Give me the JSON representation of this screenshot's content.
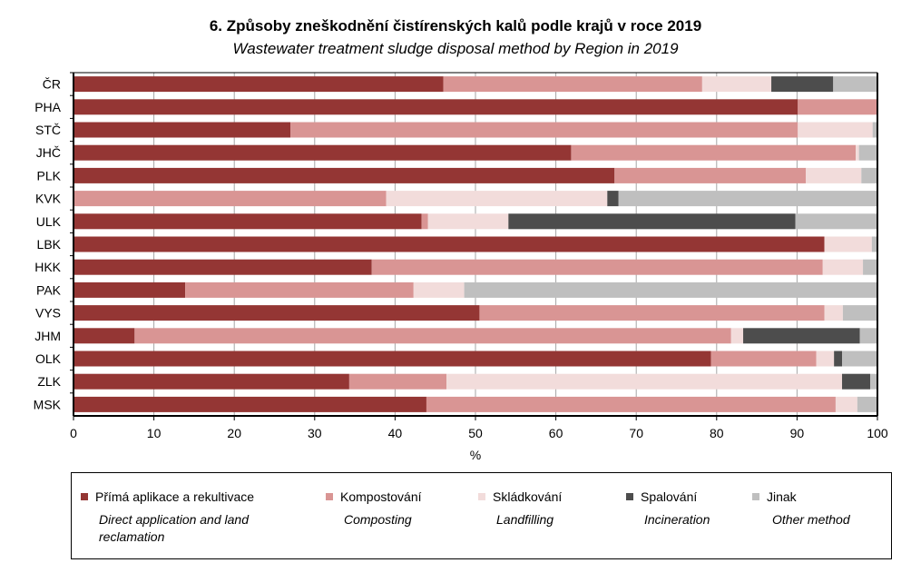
{
  "chart_data": {
    "type": "bar",
    "orientation": "horizontal",
    "stacked": true,
    "title": "6. Způsoby zneškodnění čistírenských kalů podle krajů v roce 2019",
    "subtitle": "Wastewater treatment sludge disposal method by Region in 2019",
    "xlabel": "%",
    "xlim": [
      0,
      100
    ],
    "xticks": [
      "0",
      "10",
      "20",
      "30",
      "40",
      "50",
      "60",
      "70",
      "80",
      "90",
      "100"
    ],
    "grid": true,
    "legend_position": "bottom",
    "categories": [
      "ČR",
      "PHA",
      "STČ",
      "JHČ",
      "PLK",
      "KVK",
      "ULK",
      "LBK",
      "HKK",
      "PAK",
      "VYS",
      "JHM",
      "OLK",
      "ZLK",
      "MSK"
    ],
    "series": [
      {
        "name": "Přímá aplikace a rekultivace",
        "name_en": "Direct application and land reclamation",
        "color": "#943634",
        "values": [
          46.0,
          90.1,
          27.0,
          61.9,
          67.3,
          0,
          43.3,
          93.4,
          37.1,
          13.9,
          50.5,
          7.6,
          79.3,
          34.3,
          43.9
        ]
      },
      {
        "name": "Kompostování",
        "name_en": "Composting",
        "color": "#d99594",
        "values": [
          32.2,
          9.9,
          63.1,
          35.4,
          23.8,
          38.9,
          0.8,
          0,
          56.1,
          28.4,
          42.9,
          74.2,
          13.1,
          12.1,
          50.9
        ]
      },
      {
        "name": "Skládkování",
        "name_en": "Landfilling",
        "color": "#f2dcdb",
        "values": [
          8.6,
          0,
          9.3,
          0.4,
          6.9,
          27.5,
          10.0,
          5.9,
          5.0,
          6.3,
          2.3,
          1.5,
          2.2,
          49.2,
          2.7
        ]
      },
      {
        "name": "Spalování",
        "name_en": "Incineration",
        "color": "#4d4d4d",
        "values": [
          7.7,
          0,
          0,
          0,
          0,
          1.4,
          35.7,
          0,
          0,
          0,
          0,
          14.5,
          1.0,
          3.5,
          0
        ]
      },
      {
        "name": "Jinak",
        "name_en": "Other method",
        "color": "#bfbfbf",
        "values": [
          5.5,
          0,
          0.6,
          2.3,
          2.0,
          32.2,
          10.2,
          0.7,
          1.8,
          51.4,
          4.3,
          2.2,
          4.4,
          0.9,
          2.5
        ]
      }
    ]
  }
}
